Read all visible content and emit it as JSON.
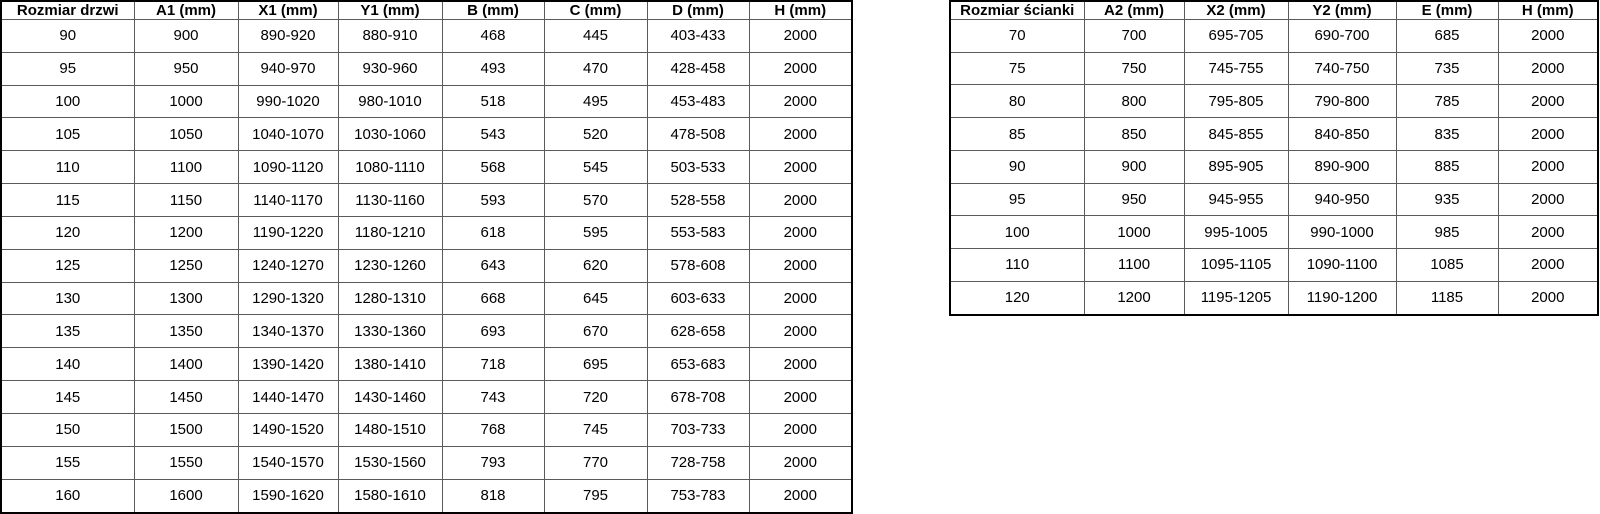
{
  "colors": {
    "background": "#ffffff",
    "text": "#000000",
    "border_inner": "#5b5b5b",
    "border_outer": "#000000"
  },
  "tables": {
    "doors": {
      "headers": [
        "Rozmiar drzwi",
        "A1 (mm)",
        "X1 (mm)",
        "Y1 (mm)",
        "B (mm)",
        "C (mm)",
        "D (mm)",
        "H (mm)"
      ],
      "rows": [
        [
          "90",
          "900",
          "890-920",
          "880-910",
          "468",
          "445",
          "403-433",
          "2000"
        ],
        [
          "95",
          "950",
          "940-970",
          "930-960",
          "493",
          "470",
          "428-458",
          "2000"
        ],
        [
          "100",
          "1000",
          "990-1020",
          "980-1010",
          "518",
          "495",
          "453-483",
          "2000"
        ],
        [
          "105",
          "1050",
          "1040-1070",
          "1030-1060",
          "543",
          "520",
          "478-508",
          "2000"
        ],
        [
          "110",
          "1100",
          "1090-1120",
          "1080-1110",
          "568",
          "545",
          "503-533",
          "2000"
        ],
        [
          "115",
          "1150",
          "1140-1170",
          "1130-1160",
          "593",
          "570",
          "528-558",
          "2000"
        ],
        [
          "120",
          "1200",
          "1190-1220",
          "1180-1210",
          "618",
          "595",
          "553-583",
          "2000"
        ],
        [
          "125",
          "1250",
          "1240-1270",
          "1230-1260",
          "643",
          "620",
          "578-608",
          "2000"
        ],
        [
          "130",
          "1300",
          "1290-1320",
          "1280-1310",
          "668",
          "645",
          "603-633",
          "2000"
        ],
        [
          "135",
          "1350",
          "1340-1370",
          "1330-1360",
          "693",
          "670",
          "628-658",
          "2000"
        ],
        [
          "140",
          "1400",
          "1390-1420",
          "1380-1410",
          "718",
          "695",
          "653-683",
          "2000"
        ],
        [
          "145",
          "1450",
          "1440-1470",
          "1430-1460",
          "743",
          "720",
          "678-708",
          "2000"
        ],
        [
          "150",
          "1500",
          "1490-1520",
          "1480-1510",
          "768",
          "745",
          "703-733",
          "2000"
        ],
        [
          "155",
          "1550",
          "1540-1570",
          "1530-1560",
          "793",
          "770",
          "728-758",
          "2000"
        ],
        [
          "160",
          "1600",
          "1590-1620",
          "1580-1610",
          "818",
          "795",
          "753-783",
          "2000"
        ]
      ]
    },
    "walls": {
      "headers": [
        "Rozmiar ścianki",
        "A2 (mm)",
        "X2 (mm)",
        "Y2 (mm)",
        "E (mm)",
        "H (mm)"
      ],
      "rows": [
        [
          "70",
          "700",
          "695-705",
          "690-700",
          "685",
          "2000"
        ],
        [
          "75",
          "750",
          "745-755",
          "740-750",
          "735",
          "2000"
        ],
        [
          "80",
          "800",
          "795-805",
          "790-800",
          "785",
          "2000"
        ],
        [
          "85",
          "850",
          "845-855",
          "840-850",
          "835",
          "2000"
        ],
        [
          "90",
          "900",
          "895-905",
          "890-900",
          "885",
          "2000"
        ],
        [
          "95",
          "950",
          "945-955",
          "940-950",
          "935",
          "2000"
        ],
        [
          "100",
          "1000",
          "995-1005",
          "990-1000",
          "985",
          "2000"
        ],
        [
          "110",
          "1100",
          "1095-1105",
          "1090-1100",
          "1085",
          "2000"
        ],
        [
          "120",
          "1200",
          "1195-1205",
          "1190-1200",
          "1185",
          "2000"
        ]
      ]
    }
  }
}
